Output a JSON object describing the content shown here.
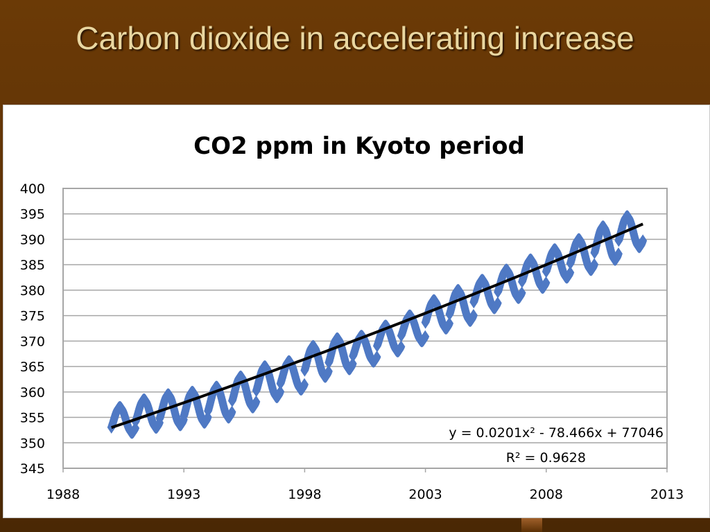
{
  "slide": {
    "title": "Carbon dioxide in accelerating increase"
  },
  "colors": {
    "background": "#5a3005",
    "title_text": "#e9d7a1",
    "series": "#4f79c4",
    "trendline": "#000000",
    "gridline": "#a6a6a6"
  },
  "chart_data": {
    "type": "scatter",
    "title": "CO2 ppm in Kyoto period",
    "xlabel": "",
    "ylabel": "",
    "xlim": [
      1988,
      2013
    ],
    "ylim": [
      345,
      400
    ],
    "x_ticks": [
      "1988",
      "1993",
      "1998",
      "2003",
      "2008",
      "2013"
    ],
    "y_ticks": [
      "345",
      "350",
      "355",
      "360",
      "365",
      "370",
      "375",
      "380",
      "385",
      "390",
      "395",
      "400"
    ],
    "grid": true,
    "legend": "none",
    "series": [
      {
        "marker": "diamond",
        "x_range": [
          1990,
          2012
        ],
        "seasonal_pattern": "annual cycle, peak ~May, trough ~Oct",
        "annual_max": [
          [
            1990,
            357
          ],
          [
            1991,
            358.5
          ],
          [
            1992,
            359.5
          ],
          [
            1993,
            360
          ],
          [
            1994,
            361
          ],
          [
            1995,
            363
          ],
          [
            1996,
            365
          ],
          [
            1997,
            366
          ],
          [
            1998,
            369
          ],
          [
            1999,
            370.5
          ],
          [
            2000,
            371
          ],
          [
            2001,
            373
          ],
          [
            2002,
            375
          ],
          [
            2003,
            378
          ],
          [
            2004,
            380
          ],
          [
            2005,
            382
          ],
          [
            2006,
            384
          ],
          [
            2007,
            386
          ],
          [
            2008,
            388
          ],
          [
            2009,
            390
          ],
          [
            2010,
            392.5
          ],
          [
            2011,
            394.5
          ]
        ],
        "annual_min": [
          [
            1990,
            352
          ],
          [
            1991,
            353
          ],
          [
            1992,
            353.5
          ],
          [
            1993,
            354
          ],
          [
            1994,
            355
          ],
          [
            1995,
            357
          ],
          [
            1996,
            359
          ],
          [
            1997,
            360.5
          ],
          [
            1998,
            363
          ],
          [
            1999,
            364.5
          ],
          [
            2000,
            366
          ],
          [
            2001,
            368
          ],
          [
            2002,
            370
          ],
          [
            2003,
            372.5
          ],
          [
            2004,
            374
          ],
          [
            2005,
            376.5
          ],
          [
            2006,
            378.5
          ],
          [
            2007,
            380.5
          ],
          [
            2008,
            382.5
          ],
          [
            2009,
            384
          ],
          [
            2010,
            386
          ],
          [
            2011,
            388.5
          ]
        ]
      }
    ],
    "trendline": {
      "type": "polynomial",
      "order": 2,
      "x_range": [
        1990,
        2012
      ],
      "y_start": 353,
      "y_end": 393
    },
    "annotations": {
      "equation": "y = 0.0201x² - 78.466x + 77046",
      "r_squared": "R² = 0.9628"
    }
  }
}
